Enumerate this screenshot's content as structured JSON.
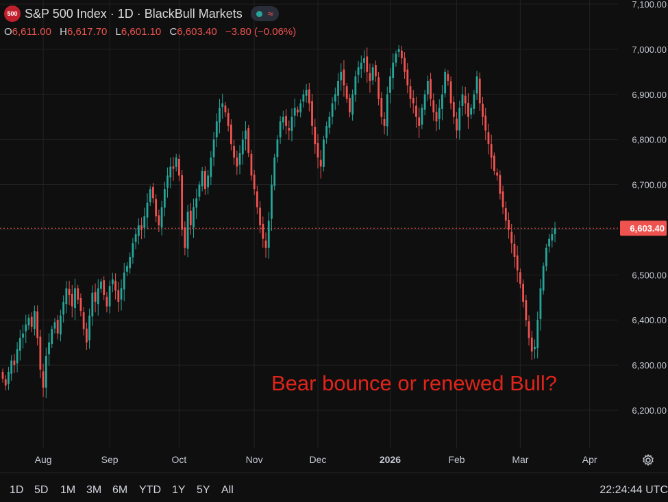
{
  "header": {
    "logo_text": "500",
    "title": "S&P 500 Index · 1D · BlackBull Markets",
    "icons": [
      "status-dot-icon",
      "wave-icon"
    ]
  },
  "ohlc": {
    "o_label": "O",
    "o_value": "6,611.00",
    "h_label": "H",
    "h_value": "6,617.70",
    "l_label": "L",
    "l_value": "6,601.10",
    "c_label": "C",
    "c_value": "6,603.40",
    "change": "−3.80 (−0.06%)"
  },
  "annotation": "Bear bounce or renewed Bull?",
  "current_price_label": "6,603.40",
  "toolbar": {
    "timeframes": [
      "1D",
      "5D",
      "1M",
      "3M",
      "6M",
      "YTD",
      "1Y",
      "5Y",
      "All"
    ],
    "clock": "22:24:44 UTC"
  },
  "colors": {
    "up": "#26a69a",
    "down": "#ef5350",
    "background": "#0f0f0f",
    "grid": "#222222",
    "annotation": "#e0241a"
  },
  "chart_data": {
    "type": "candlestick",
    "title": "S&P 500 Index · 1D · BlackBull Markets",
    "ylim": [
      6150,
      7100
    ],
    "y_ticks": [
      {
        "value": 7100,
        "label": "7,100.00"
      },
      {
        "value": 7000,
        "label": "7,000.00"
      },
      {
        "value": 6900,
        "label": "6,900.00"
      },
      {
        "value": 6800,
        "label": "6,800.00"
      },
      {
        "value": 6700,
        "label": "6,700.00"
      },
      {
        "value": 6600,
        "label": "6,600.00"
      },
      {
        "value": 6500,
        "label": "6,500.00"
      },
      {
        "value": 6400,
        "label": "6,400.00"
      },
      {
        "value": 6300,
        "label": "6,300.00"
      },
      {
        "value": 6200,
        "label": "6,200.00"
      }
    ],
    "x_ticks": [
      {
        "index": 14,
        "label": "Aug"
      },
      {
        "index": 37,
        "label": "Sep"
      },
      {
        "index": 61,
        "label": "Oct"
      },
      {
        "index": 87,
        "label": "Nov"
      },
      {
        "index": 109,
        "label": "Dec"
      },
      {
        "index": 134,
        "label": "2026",
        "bold": true
      },
      {
        "index": 157,
        "label": "Feb"
      },
      {
        "index": 179,
        "label": "Mar"
      },
      {
        "index": 203,
        "label": "Apr"
      }
    ],
    "current_price": 6603.4,
    "grid": true,
    "closes": [
      6270,
      6255,
      6285,
      6310,
      6300,
      6335,
      6360,
      6370,
      6390,
      6405,
      6385,
      6420,
      6360,
      6290,
      6250,
      6320,
      6350,
      6380,
      6395,
      6370,
      6410,
      6440,
      6470,
      6455,
      6430,
      6470,
      6445,
      6420,
      6380,
      6350,
      6410,
      6460,
      6440,
      6470,
      6485,
      6455,
      6430,
      6475,
      6490,
      6465,
      6440,
      6470,
      6505,
      6520,
      6540,
      6570,
      6590,
      6610,
      6600,
      6630,
      6660,
      6690,
      6670,
      6630,
      6610,
      6650,
      6690,
      6720,
      6740,
      6735,
      6760,
      6720,
      6600,
      6560,
      6640,
      6610,
      6650,
      6670,
      6700,
      6730,
      6690,
      6720,
      6760,
      6800,
      6840,
      6870,
      6880,
      6860,
      6830,
      6790,
      6760,
      6740,
      6770,
      6800,
      6820,
      6770,
      6720,
      6690,
      6650,
      6610,
      6580,
      6560,
      6620,
      6700,
      6760,
      6800,
      6840,
      6850,
      6830,
      6820,
      6850,
      6870,
      6860,
      6880,
      6900,
      6910,
      6880,
      6830,
      6790,
      6760,
      6740,
      6800,
      6830,
      6850,
      6880,
      6900,
      6930,
      6950,
      6920,
      6890,
      6860,
      6900,
      6940,
      6960,
      6970,
      6980,
      6950,
      6930,
      6960,
      6940,
      6890,
      6850,
      6830,
      6900,
      6940,
      6970,
      6990,
      7000,
      6980,
      6950,
      6920,
      6890,
      6880,
      6850,
      6830,
      6870,
      6900,
      6930,
      6890,
      6860,
      6840,
      6870,
      6900,
      6950,
      6930,
      6880,
      6850,
      6820,
      6870,
      6900,
      6880,
      6850,
      6870,
      6900,
      6940,
      6880,
      6850,
      6820,
      6790,
      6760,
      6730,
      6720,
      6680,
      6650,
      6620,
      6600,
      6570,
      6540,
      6510,
      6480,
      6440,
      6400,
      6360,
      6330,
      6340,
      6400,
      6470,
      6520,
      6560,
      6580,
      6590,
      6603.4
    ]
  }
}
